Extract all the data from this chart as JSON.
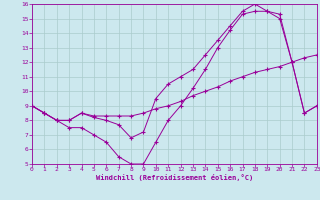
{
  "bg_color": "#cce8ee",
  "line_color": "#990099",
  "grid_color": "#aacccc",
  "xlabel": "Windchill (Refroidissement éolien,°C)",
  "xlim": [
    0,
    23
  ],
  "ylim": [
    5,
    16
  ],
  "yticks": [
    5,
    6,
    7,
    8,
    9,
    10,
    11,
    12,
    13,
    14,
    15,
    16
  ],
  "xticks": [
    0,
    1,
    2,
    3,
    4,
    5,
    6,
    7,
    8,
    9,
    10,
    11,
    12,
    13,
    14,
    15,
    16,
    17,
    18,
    19,
    20,
    21,
    22,
    23
  ],
  "line1_x": [
    0,
    1,
    2,
    3,
    4,
    5,
    6,
    7,
    8,
    9,
    10,
    11,
    12,
    13,
    14,
    15,
    16,
    17,
    18,
    19,
    20,
    21,
    22,
    23
  ],
  "line1_y": [
    9.0,
    8.5,
    8.0,
    8.0,
    8.5,
    8.3,
    8.3,
    8.3,
    8.3,
    8.5,
    8.8,
    9.0,
    9.3,
    9.7,
    10.0,
    10.3,
    10.7,
    11.0,
    11.3,
    11.5,
    11.7,
    12.0,
    12.3,
    12.5
  ],
  "line2_x": [
    0,
    1,
    2,
    3,
    4,
    5,
    6,
    7,
    8,
    9,
    10,
    11,
    12,
    13,
    14,
    15,
    16,
    17,
    18,
    19,
    20,
    21,
    22,
    23
  ],
  "line2_y": [
    9.0,
    8.5,
    8.0,
    7.5,
    7.5,
    7.0,
    6.5,
    5.5,
    5.0,
    5.0,
    6.5,
    8.0,
    9.0,
    10.2,
    11.5,
    13.0,
    14.2,
    15.3,
    15.5,
    15.5,
    15.0,
    12.0,
    8.5,
    9.0
  ],
  "line3_x": [
    0,
    1,
    2,
    3,
    4,
    5,
    6,
    7,
    8,
    9,
    10,
    11,
    12,
    13,
    14,
    15,
    16,
    17,
    18,
    19,
    20,
    21,
    22,
    23
  ],
  "line3_y": [
    9.0,
    8.5,
    8.0,
    8.0,
    8.5,
    8.2,
    8.0,
    7.7,
    6.8,
    7.2,
    9.5,
    10.5,
    11.0,
    11.5,
    12.5,
    13.5,
    14.5,
    15.5,
    16.0,
    15.5,
    15.3,
    12.0,
    8.5,
    9.0
  ]
}
